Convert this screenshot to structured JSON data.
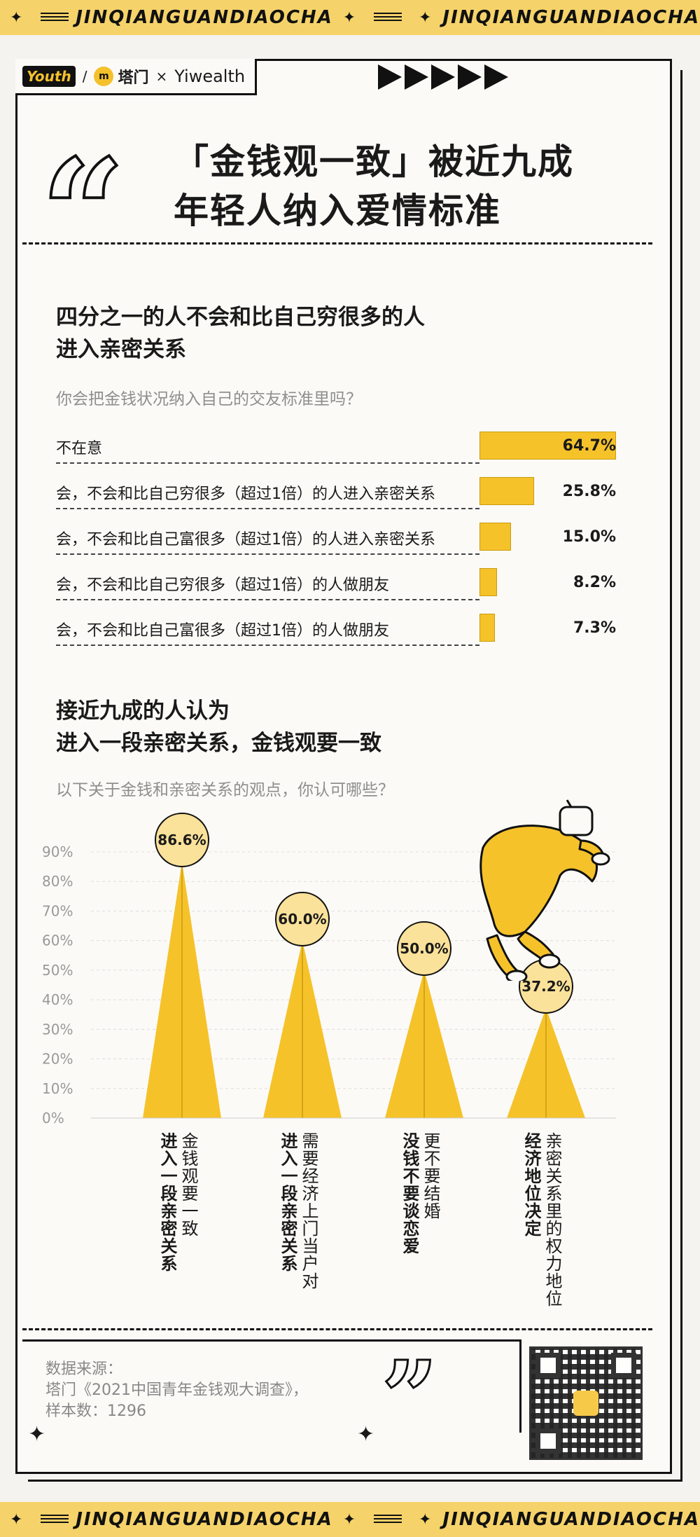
{
  "banner": {
    "left_text": "JINQIANGUANDIAOCHA",
    "right_text": "JINQIANGUANDIAOCHA"
  },
  "logos": {
    "youth": "Youth",
    "tamen": "塔门",
    "times": "×",
    "yiwealth": "Yiwealth"
  },
  "header": {
    "title_line1": "「金钱观一致」被近九成",
    "title_line2": "年轻人纳入爱情标准"
  },
  "section1": {
    "title_line1": "四分之一的人不会和比自己穷很多的人",
    "title_line2": "进入亲密关系",
    "question": "你会把金钱状况纳入自己的交友标准里吗？"
  },
  "section2": {
    "title_line1": "接近九成的人认为",
    "title_line2": "进入一段亲密关系，金钱观要一致",
    "question": "以下关于金钱和亲密关系的观点，你认可哪些？"
  },
  "chart_data": [
    {
      "type": "bar",
      "orientation": "horizontal",
      "categories": [
        "不在意",
        "会，不会和比自己穷很多（超过1倍）的人进入亲密关系",
        "会，不会和比自己富很多（超过1倍）的人进入亲密关系",
        "会，不会和比自己穷很多（超过1倍）的人做朋友",
        "会，不会和比自己富很多（超过1倍）的人做朋友"
      ],
      "values": [
        64.7,
        25.8,
        15.0,
        8.2,
        7.3
      ],
      "value_labels": [
        "64.7%",
        "25.8%",
        "15.0%",
        "8.2%",
        "7.3%"
      ],
      "color": "#f6c22a"
    },
    {
      "type": "bar",
      "orientation": "vertical",
      "style": "triangle",
      "categories": [
        {
          "bold": "进入一段亲密关系",
          "normal": "金钱观要一致"
        },
        {
          "bold": "进入一段亲密关系",
          "normal": "需要经济上门当户对"
        },
        {
          "bold": "没钱不要谈恋爱",
          "normal": "更不要结婚"
        },
        {
          "bold": "经济地位决定",
          "normal": "亲密关系里的权力地位"
        }
      ],
      "values": [
        86.6,
        60.0,
        50.0,
        37.2
      ],
      "value_labels": [
        "86.6%",
        "60.0%",
        "50.0%",
        "37.2%"
      ],
      "yticks": [
        "0%",
        "10%",
        "20%",
        "30%",
        "40%",
        "50%",
        "60%",
        "70%",
        "80%",
        "90%"
      ],
      "ylim": [
        0,
        90
      ],
      "grid": true,
      "color": "#f6c22a"
    }
  ],
  "footer": {
    "source_label": "数据来源：",
    "source_text": "塔门《2021中国青年金钱观大调查》，",
    "sample": "样本数：1296"
  }
}
